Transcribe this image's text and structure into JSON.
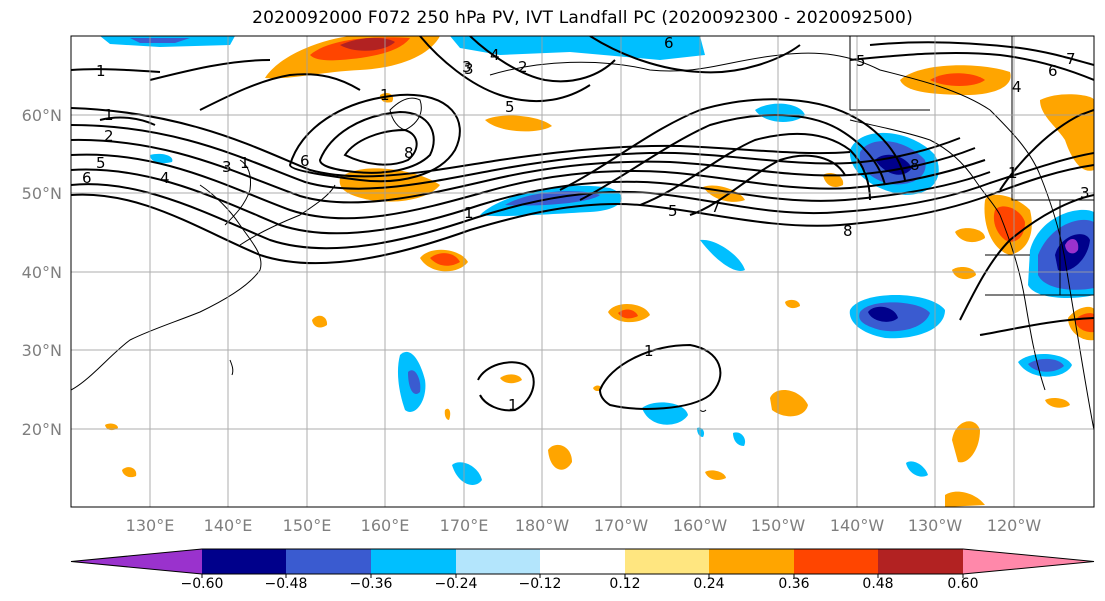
{
  "title": "2020092000 F072 250 hPa PV, IVT Landfall PC (2020092300 - 2020092500)",
  "lat_labels": [
    "60°N",
    "50°N",
    "40°N",
    "30°N",
    "20°N"
  ],
  "lon_labels": [
    "130°E",
    "140°E",
    "150°E",
    "160°E",
    "170°E",
    "180°W",
    "170°W",
    "160°W",
    "150°W",
    "140°W",
    "130°W",
    "120°W"
  ],
  "colorbar": {
    "ticks": [
      "−0.60",
      "−0.48",
      "−0.36",
      "−0.24",
      "−0.12",
      "0.12",
      "0.24",
      "0.36",
      "0.48",
      "0.60"
    ],
    "colors": [
      "#9a32cd",
      "#00008b",
      "#3a5bd0",
      "#00bfff",
      "#b3e5fc",
      "#ffffff",
      "#ffe680",
      "#ffa500",
      "#ff4500",
      "#b22222",
      "#ff88aa"
    ]
  },
  "colors": {
    "negative_fill": "#00bfff",
    "positive_fill": "#ffa500",
    "contour": "#000000",
    "grid": "#a0a0a0"
  },
  "contour_labels": [
    "1",
    "1",
    "2",
    "5",
    "6",
    "4",
    "3",
    "1",
    "2",
    "3",
    "4",
    "5",
    "6",
    "8",
    "1",
    "5",
    "8",
    "7",
    "1",
    "3",
    "6",
    "5",
    "4",
    "6",
    "7",
    "1",
    "3",
    "8",
    "1",
    "1"
  ]
}
